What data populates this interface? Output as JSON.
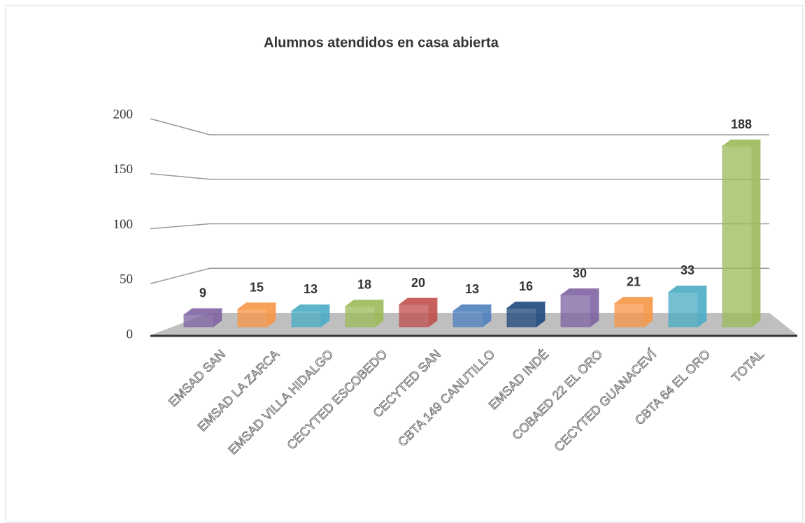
{
  "chart_data": {
    "type": "bar3d",
    "title": "Alumnos atendidos en casa abierta",
    "categories": [
      "EMSAD SAN",
      "EMSAD LA ZARCA",
      "EMSAD VILLA HIDALGO",
      "CECYTED ESCOBEDO",
      "CECYTED SAN",
      "CBTA 149 CANUTILLO",
      "EMSAD INDÉ",
      "COBAED 22 EL ORO",
      "CECYTED GUANACEVÍ",
      "CBTA 64 EL ORO",
      "TOTAL"
    ],
    "values": [
      9,
      15,
      13,
      18,
      20,
      13,
      16,
      30,
      21,
      33,
      188
    ],
    "colors": [
      "#8064a2",
      "#f79646",
      "#4bacc6",
      "#9bbb59",
      "#c0504d",
      "#4f81bd",
      "#1f497d",
      "#8064a2",
      "#f79646",
      "#4bacc6",
      "#9bbb59"
    ],
    "ylim": [
      0,
      200
    ],
    "yticks": [
      0,
      50,
      100,
      150,
      200
    ],
    "grid": true
  }
}
